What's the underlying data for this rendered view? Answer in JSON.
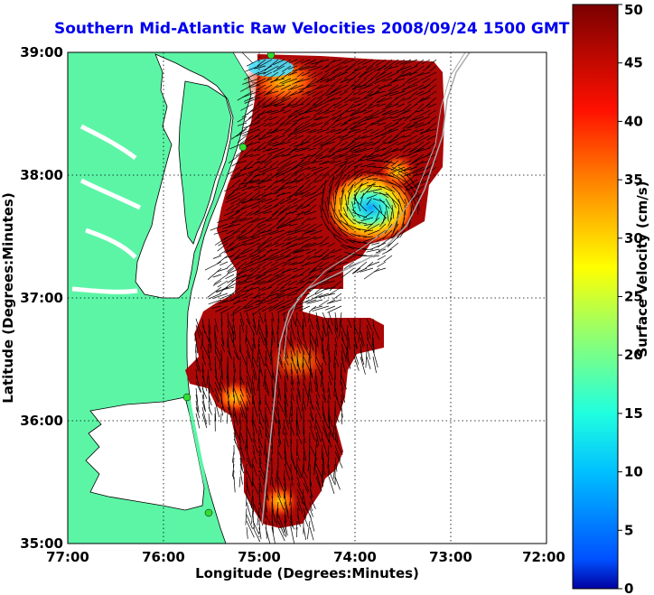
{
  "title": "Southern Mid-Atlantic Raw Velocities 2008/09/24 1500 GMT",
  "x_axis": {
    "label": "Longitude (Degrees:Minutes)",
    "ticks": [
      "77:00",
      "76:00",
      "75:00",
      "74:00",
      "73:00",
      "72:00"
    ]
  },
  "y_axis": {
    "label": "Latitude (Degrees:Minutes)",
    "ticks": [
      "39:00",
      "38:00",
      "37:00",
      "36:00",
      "35:00"
    ]
  },
  "colorbar": {
    "label": "Surface Velocity (cm/s)",
    "ticks": [
      "0",
      "5",
      "10",
      "15",
      "20",
      "25",
      "30",
      "35",
      "40",
      "45",
      "50"
    ],
    "range": [
      0,
      50
    ],
    "colormap": "jet"
  },
  "colors": {
    "land": "#5cf5a6",
    "water": "#ffffff",
    "title": "#0000ee",
    "field_high": "#a00000",
    "field_low": "#00c8ff",
    "stations": "#33dd33"
  },
  "map": {
    "lon_range": [
      -77,
      -72
    ],
    "lat_range": [
      35,
      39
    ],
    "grid": "dotted",
    "max_speed_cm_s": 50
  }
}
